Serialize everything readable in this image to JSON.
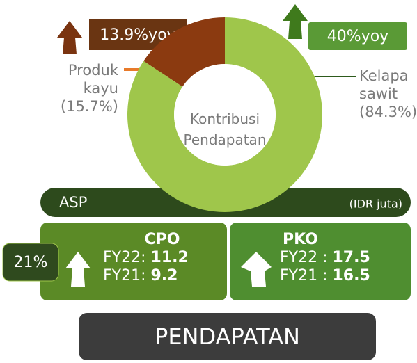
{
  "chart_data": {
    "type": "pie",
    "categories": [
      "Produk kayu",
      "Kelapa sawit"
    ],
    "values": [
      15.7,
      84.3
    ],
    "value_labels": [
      "(15.7%)",
      "(84.3%)"
    ],
    "colors": [
      "#8b3a10",
      "#9fc64b"
    ],
    "donut": true,
    "center_label": "Kontribusi Pendapatan",
    "annotations": [
      "13.9%yoy",
      "40%yoy"
    ]
  },
  "asp_bar": {
    "title": "ASP",
    "unit": "(IDR juta)"
  },
  "badge": "21%",
  "panels": [
    {
      "title": "CPO",
      "rows": [
        {
          "label": "FY22:",
          "value": "11.2"
        },
        {
          "label": "FY21:",
          "value": "9.2"
        }
      ]
    },
    {
      "title": "PKO",
      "rows": [
        {
          "label": "FY22 :",
          "value": "17.5"
        },
        {
          "label": "FY21 :",
          "value": "16.5"
        }
      ]
    }
  ],
  "footer": "PENDAPATAN"
}
